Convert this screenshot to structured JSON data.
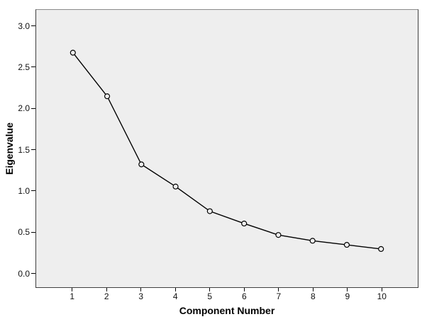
{
  "chart_data": {
    "type": "line",
    "title": "",
    "xlabel": "Component Number",
    "ylabel": "Eigenvalue",
    "x": [
      1,
      2,
      3,
      4,
      5,
      6,
      7,
      8,
      9,
      10
    ],
    "values": [
      2.68,
      2.15,
      1.32,
      1.05,
      0.75,
      0.6,
      0.46,
      0.39,
      0.34,
      0.29
    ],
    "xticks": [
      "1",
      "2",
      "3",
      "4",
      "5",
      "6",
      "7",
      "8",
      "9",
      "10"
    ],
    "yticks": [
      "0.0",
      "0.5",
      "1.0",
      "1.5",
      "2.0",
      "2.5",
      "3.0"
    ],
    "xlim": [
      1,
      10
    ],
    "ylim": [
      0.0,
      3.0
    ],
    "marker": "open-circle",
    "line_color": "#000000",
    "marker_stroke": "#000000",
    "marker_fill": "#eeeeee",
    "plot_background": "#eeeeee",
    "frame_color": "#3f3f3f",
    "page_background": "#ffffff",
    "grid": "off",
    "legend": "none"
  }
}
